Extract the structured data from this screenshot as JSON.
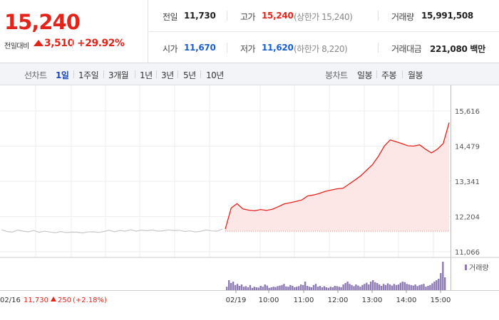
{
  "quote": {
    "price": "15,240",
    "change_label": "전일대비",
    "change_amount": "3,510",
    "change_pct": "+29.92%",
    "prev_close_label": "전일",
    "prev_close": "11,730",
    "high_label": "고가",
    "high": "15,240",
    "upper_limit_note": "(상한가 15,240)",
    "volume_label": "거래량",
    "volume": "15,991,508",
    "open_label": "시가",
    "open": "11,670",
    "low_label": "저가",
    "low": "11,620",
    "lower_limit_note": "(하한가 8,220)",
    "turnover_label": "거래대금",
    "turnover": "221,080 백만"
  },
  "tabs": {
    "line_label": "선차트",
    "line_tabs": [
      "1일",
      "1주일",
      "3개월",
      "1년",
      "3년",
      "5년",
      "10년"
    ],
    "active_tab": "1일",
    "candle_label": "봉차트",
    "candle_tabs": [
      "일봉",
      "주봉",
      "월봉"
    ]
  },
  "colors": {
    "up": "#e2241b",
    "down": "#1a5fd1",
    "prev_day_line": "#c8c8c8",
    "area_fill": "#fde6e6",
    "volume_bar": "#8e7bb5"
  },
  "chart_data": {
    "type": "line",
    "price_axis": {
      "ticks": [
        "15,616",
        "14,479",
        "13,341",
        "12,204",
        "11,066"
      ],
      "range": [
        11066,
        15616
      ]
    },
    "x_tick_labels": [
      "02/16",
      "02/19",
      "10:00",
      "11:00",
      "12:00",
      "13:00",
      "14:00",
      "15:00"
    ],
    "prev_day_series": {
      "date": "02/16",
      "close": "11,730",
      "change": "250",
      "change_pct": "(+2.18%)",
      "values": [
        11776,
        11722,
        11698,
        11768,
        11733,
        11710,
        11752,
        11690,
        11730,
        11705,
        11678,
        11721,
        11683,
        11700,
        11699,
        11672,
        11705,
        11710,
        11690,
        11720,
        11760,
        11712,
        11755,
        11730,
        11775,
        11730,
        11765,
        11744,
        11770,
        11730,
        11745,
        11771,
        11753,
        11760,
        11720,
        11740,
        11705,
        11730,
        11770,
        11740,
        11730,
        11800
      ]
    },
    "intraday_series": {
      "date": "02/19",
      "times": [
        "09:00",
        "09:10",
        "09:20",
        "09:30",
        "09:40",
        "09:50",
        "10:00",
        "10:10",
        "10:20",
        "10:30",
        "10:40",
        "10:50",
        "11:00",
        "11:10",
        "11:20",
        "11:30",
        "11:40",
        "11:50",
        "12:00",
        "12:10",
        "12:20",
        "12:30",
        "12:40",
        "12:50",
        "13:00",
        "13:10",
        "13:20",
        "13:30",
        "13:40",
        "13:50",
        "14:00",
        "14:10",
        "14:20",
        "14:30",
        "14:40",
        "14:50",
        "15:00",
        "15:10",
        "15:20"
      ],
      "values": [
        11800,
        12480,
        12620,
        12450,
        12410,
        12390,
        12430,
        12400,
        12440,
        12520,
        12610,
        12650,
        12690,
        12740,
        12870,
        12900,
        12950,
        13020,
        13060,
        13100,
        13120,
        13250,
        13380,
        13520,
        13700,
        13880,
        14150,
        14480,
        14680,
        14620,
        14560,
        14490,
        14480,
        14520,
        14380,
        14260,
        14380,
        14560,
        15240
      ]
    },
    "volume_legend": "거래량",
    "volume": [
      0.12,
      0.35,
      0.25,
      0.3,
      0.18,
      0.22,
      0.15,
      0.2,
      0.12,
      0.14,
      0.1,
      0.18,
      0.08,
      0.12,
      0.1,
      0.09,
      0.15,
      0.12,
      0.2,
      0.16,
      0.08,
      0.1,
      0.12,
      0.11,
      0.14,
      0.16,
      0.18,
      0.22,
      0.13,
      0.12,
      0.18,
      0.15,
      0.1,
      0.12,
      0.14,
      0.2,
      0.18,
      0.3,
      0.15,
      0.12,
      0.1,
      0.18,
      0.22,
      0.12,
      0.15,
      0.1,
      0.14,
      0.1,
      0.08,
      0.12,
      0.1,
      0.15,
      0.14,
      0.12,
      0.1,
      0.2,
      0.25,
      0.3,
      0.22,
      0.18,
      0.14,
      0.2,
      0.16,
      0.12,
      0.18,
      0.22,
      0.26,
      0.2,
      0.3,
      0.35,
      0.28,
      0.25,
      0.2,
      0.15,
      0.22,
      0.18,
      0.24,
      0.2,
      0.16,
      0.22,
      0.18,
      0.2,
      0.26,
      0.3,
      0.28,
      0.22,
      0.2,
      0.18,
      0.16,
      0.2,
      0.14,
      0.18,
      0.2,
      0.22,
      0.12,
      0.15,
      0.18,
      0.24,
      0.3,
      0.35,
      0.4,
      0.6,
      1.0,
      0.45
    ]
  }
}
